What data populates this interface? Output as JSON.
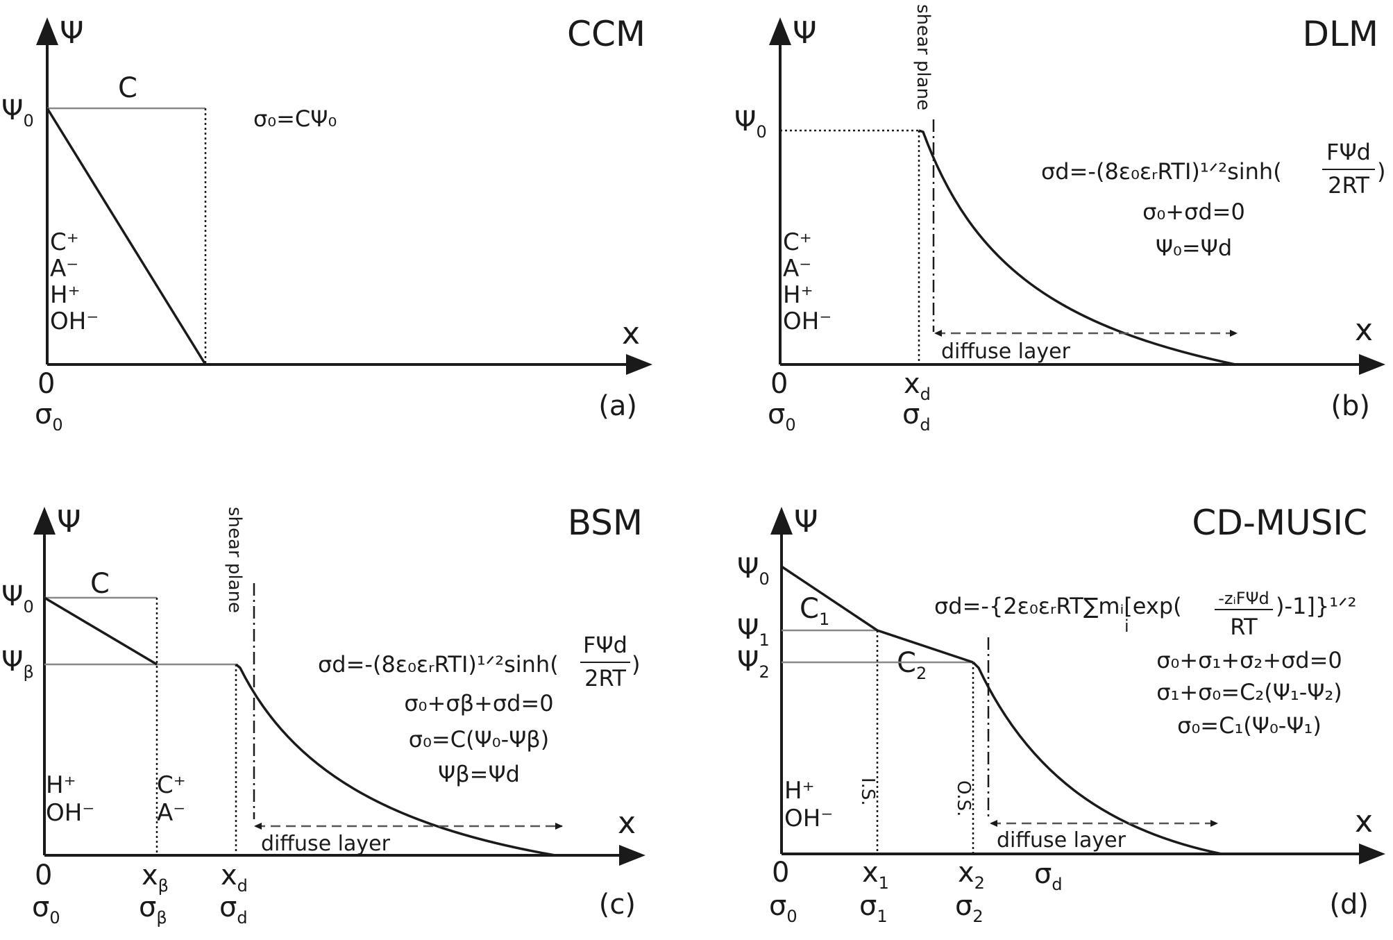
{
  "common": {
    "psi_axis": "Ψ",
    "x_axis": "x",
    "origin": "0",
    "sigma0": "σ",
    "sigma0_sub": "0",
    "psi0": "Ψ",
    "psi0_sub": "0",
    "diffuse_layer": "diffuse layer",
    "shear_plane": "shear plane"
  },
  "panel_a": {
    "title": "CCM",
    "tag": "(a)",
    "cap_label": "C",
    "eq1": "σ₀=CΨ₀",
    "ions": [
      "C⁺",
      "A⁻",
      "H⁺",
      "OH⁻"
    ]
  },
  "panel_b": {
    "title": "DLM",
    "tag": "(b)",
    "xd": "x",
    "xd_sub": "d",
    "sd": "σ",
    "sd_sub": "d",
    "eq1_lhs": "σd=-(8ε₀εᵣRTI)¹ᐟ²sinh(",
    "eq1_num": "FΨd",
    "eq1_den": "2RT",
    "eq1_close": ")",
    "eq2": "σ₀+σd=0",
    "eq3": "Ψ₀=Ψd",
    "ions": [
      "C⁺",
      "A⁻",
      "H⁺",
      "OH⁻"
    ]
  },
  "panel_c": {
    "title": "BSM",
    "tag": "(c)",
    "cap_label": "C",
    "psib": "Ψ",
    "psib_sub": "β",
    "xb": "x",
    "xb_sub": "β",
    "sb": "σ",
    "sb_sub": "β",
    "xd": "x",
    "xd_sub": "d",
    "sd": "σ",
    "sd_sub": "d",
    "eq1_lhs": "σd=-(8ε₀εᵣRTI)¹ᐟ²sinh(",
    "eq1_num": "FΨd",
    "eq1_den": "2RT",
    "eq1_close": ")",
    "eq2": "σ₀+σβ+σd=0",
    "eq3": "σ₀=C(Ψ₀-Ψβ)",
    "eq4": "Ψβ=Ψd",
    "ions_left": [
      "H⁺",
      "OH⁻"
    ],
    "ions_right": [
      "C⁺",
      "A⁻"
    ]
  },
  "panel_d": {
    "title": "CD-MUSIC",
    "tag": "(d)",
    "psi1": "Ψ",
    "psi1_sub": "1",
    "psi2": "Ψ",
    "psi2_sub": "2",
    "c1": "C",
    "c1_sub": "1",
    "c2": "C",
    "c2_sub": "2",
    "x1": "x",
    "x1_sub": "1",
    "s1": "σ",
    "s1_sub": "1",
    "x2": "x",
    "x2_sub": "2",
    "s2": "σ",
    "s2_sub": "2",
    "sd": "σ",
    "sd_sub": "d",
    "is_label": "I.S.",
    "os_label": "O.S.",
    "eq1_lhs": "σd=-{2ε₀εᵣRT∑mᵢ[exp(",
    "eq1_num": "-zᵢFΨd",
    "eq1_den": "RT",
    "eq1_close": ")-1]}¹ᐟ²",
    "eq1_index": "i",
    "eq2": "σ₀+σ₁+σ₂+σd=0",
    "eq3": "σ₁+σ₀=C₂(Ψ₁-Ψ₂)",
    "eq4": "σ₀=C₁(Ψ₀-Ψ₁)",
    "ions": [
      "H⁺",
      "OH⁻"
    ]
  }
}
